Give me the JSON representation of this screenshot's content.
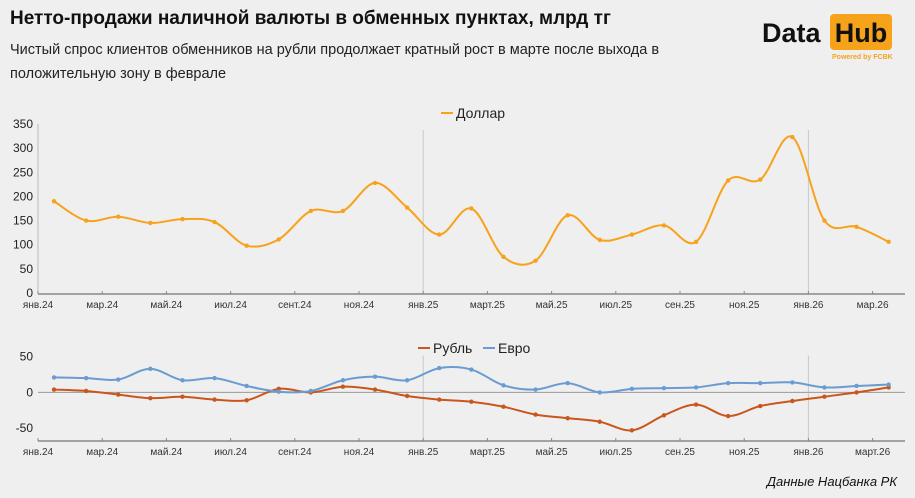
{
  "title": "Нетто-продажи наличной валюты в обменных пунктах, млрд тг",
  "subtitle": "Чистый спрос клиентов обменников на рубли продолжает кратный рост в марте после выхода в положительную зону в феврале",
  "logo": {
    "word1": "Data",
    "word2": "Hub",
    "tagline": "Powered by FCBK"
  },
  "source": "Данные Нацбанка РК",
  "chart_data": [
    {
      "type": "line",
      "legend": [
        "Доллар"
      ],
      "legend_position": "top-center",
      "ylim": [
        0,
        350
      ],
      "yticks": [
        0,
        50,
        100,
        150,
        200,
        250,
        300,
        350
      ],
      "xticks": [
        "янв.24",
        "мар.24",
        "май.24",
        "июл.24",
        "сент.24",
        "ноя.24",
        "янв.25",
        "март.25",
        "май.25",
        "июл.25",
        "сен.25",
        "ноя.25",
        "янв.26",
        "мар.26"
      ],
      "x": [
        "2024-01",
        "2024-02",
        "2024-03",
        "2024-04",
        "2024-05",
        "2024-06",
        "2024-07",
        "2024-08",
        "2024-09",
        "2024-10",
        "2024-11",
        "2024-12",
        "2025-01",
        "2025-02",
        "2025-03",
        "2025-04",
        "2025-05",
        "2025-06",
        "2025-07",
        "2025-08",
        "2025-09",
        "2025-10",
        "2025-11",
        "2025-12",
        "2026-01",
        "2026-02",
        "2026-03"
      ],
      "series": [
        {
          "name": "Доллар",
          "color": "#f7a21b",
          "values": [
            190,
            150,
            158,
            145,
            153,
            147,
            98,
            111,
            170,
            170,
            228,
            177,
            121,
            175,
            75,
            67,
            161,
            110,
            121,
            140,
            106,
            233,
            235,
            323,
            150,
            137,
            106
          ]
        }
      ]
    },
    {
      "type": "line",
      "legend": [
        "Рубль",
        "Евро"
      ],
      "legend_position": "top-center",
      "ylim": [
        -70,
        60
      ],
      "yticks": [
        -50,
        0,
        50
      ],
      "xticks": [
        "янв.24",
        "мар.24",
        "май.24",
        "июл.24",
        "сент.24",
        "ноя.24",
        "янв.25",
        "март.25",
        "май.25",
        "июл.25",
        "сен.25",
        "ноя.25",
        "янв.26",
        "март.26"
      ],
      "series": [
        {
          "name": "Рубль",
          "color": "#c9561c",
          "values": [
            4,
            2,
            -3,
            -8,
            -6,
            -10,
            -11,
            5,
            0,
            8,
            4,
            -5,
            -10,
            -13,
            -20,
            -31,
            -36,
            -41,
            -53,
            -32,
            -17,
            -33,
            -19,
            -12,
            -6,
            0,
            7
          ]
        },
        {
          "name": "Евро",
          "color": "#6a9bd1",
          "values": [
            21,
            20,
            18,
            33,
            17,
            20,
            9,
            1,
            2,
            17,
            22,
            17,
            34,
            32,
            10,
            4,
            13,
            0,
            5,
            6,
            7,
            13,
            13,
            14,
            7,
            9,
            11
          ]
        }
      ]
    }
  ]
}
